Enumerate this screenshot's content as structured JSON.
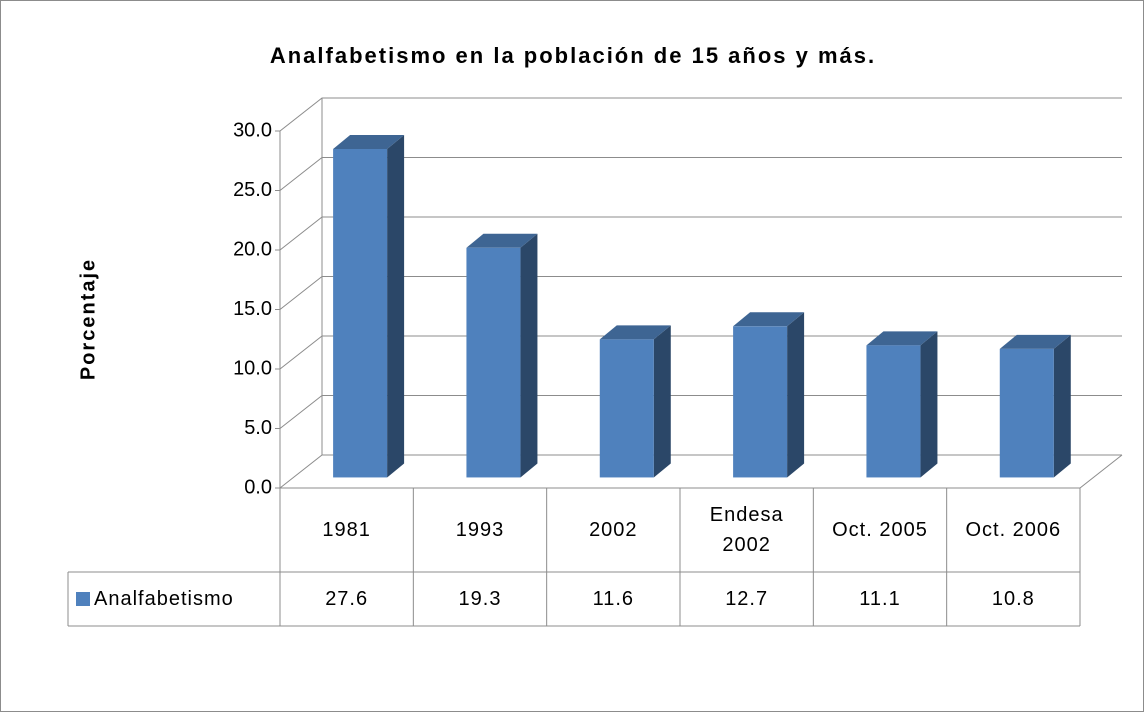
{
  "chart_data": {
    "type": "bar3d",
    "title": "Analfabetismo en la población de 15 años y más.",
    "y_label": "Porcentaje",
    "categories": [
      "1981",
      "1993",
      "2002",
      "Endesa 2002",
      "Oct. 2005",
      "Oct. 2006"
    ],
    "series": [
      {
        "name": "Analfabetismo",
        "color": "#4f81bd",
        "values": [
          27.6,
          19.3,
          11.6,
          12.7,
          11.1,
          10.8
        ]
      }
    ],
    "ylim": [
      0,
      30
    ],
    "yticks": [
      {
        "value": 0,
        "label": "0.0"
      },
      {
        "value": 5,
        "label": "5.0"
      },
      {
        "value": 10,
        "label": "10.0"
      },
      {
        "value": 15,
        "label": "15.0"
      },
      {
        "value": 20,
        "label": "20.0"
      },
      {
        "value": 25,
        "label": "25.0"
      },
      {
        "value": 30,
        "label": "30.0"
      }
    ],
    "grid": true,
    "data_table": true
  }
}
